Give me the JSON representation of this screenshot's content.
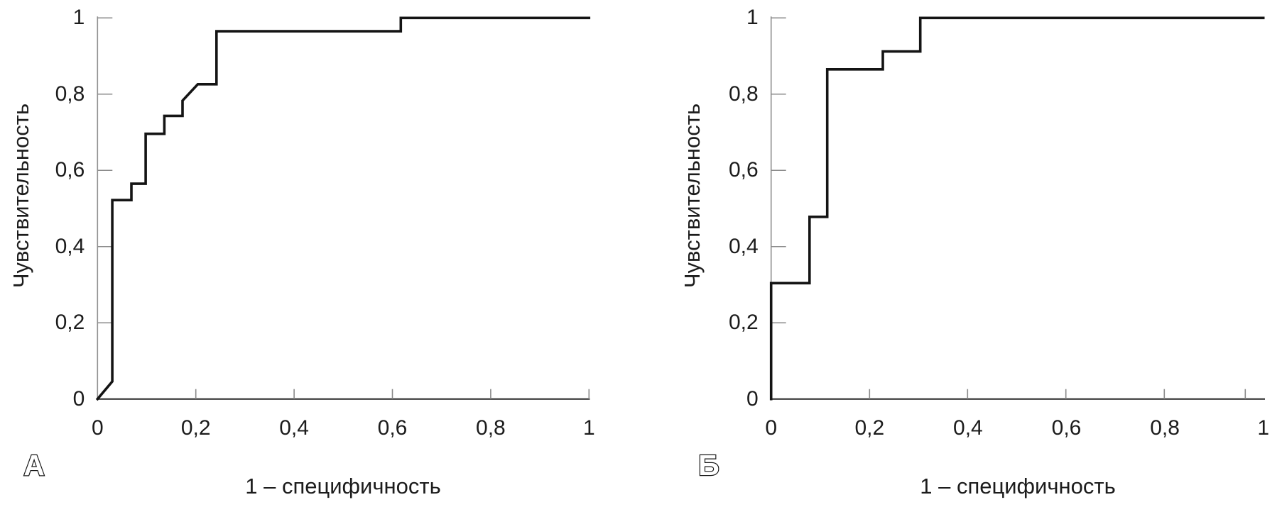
{
  "chart_data": [
    {
      "type": "line",
      "subtype": "roc-step-curve",
      "panel_label": "А",
      "xlabel": "1 – специфичность",
      "ylabel": "Чувствительность",
      "xlim": [
        0,
        1
      ],
      "ylim": [
        0,
        1
      ],
      "grid": false,
      "legend": "none",
      "line_color": "#141414",
      "x_tick_values": [
        0,
        0.2,
        0.4,
        0.6,
        0.8,
        1
      ],
      "x_tick_labels": [
        "0",
        "0,2",
        "0,4",
        "0,6",
        "0,8",
        "1"
      ],
      "y_tick_values": [
        1,
        0.8,
        0.6,
        0.4,
        0.2,
        0
      ],
      "y_tick_labels": [
        "1",
        "0,8",
        "0,6",
        "0,4",
        "0,2",
        "0"
      ],
      "points": [
        [
          0,
          0
        ],
        [
          0.03,
          0.046
        ],
        [
          0.03,
          0.522
        ],
        [
          0.069,
          0.522
        ],
        [
          0.069,
          0.565
        ],
        [
          0.098,
          0.565
        ],
        [
          0.098,
          0.696
        ],
        [
          0.136,
          0.696
        ],
        [
          0.136,
          0.743
        ],
        [
          0.173,
          0.743
        ],
        [
          0.173,
          0.783
        ],
        [
          0.204,
          0.826
        ],
        [
          0.242,
          0.826
        ],
        [
          0.242,
          0.965
        ],
        [
          0.617,
          0.965
        ],
        [
          0.617,
          1.0
        ],
        [
          1.0,
          1.0
        ]
      ]
    },
    {
      "type": "line",
      "subtype": "roc-step-curve",
      "panel_label": "Б",
      "xlabel": "1 – специфичность",
      "ylabel": "Чувствительность",
      "xlim": [
        0,
        1
      ],
      "ylim": [
        0,
        1
      ],
      "grid": false,
      "legend": "none",
      "line_color": "#141414",
      "x_tick_values": [
        0,
        0.2,
        0.4,
        0.6,
        0.8,
        1
      ],
      "x_tick_labels": [
        "0",
        "0,2",
        "0,4",
        "0,6",
        "0,8",
        "1"
      ],
      "y_tick_values": [
        1,
        0.8,
        0.6,
        0.4,
        0.2,
        0
      ],
      "y_tick_labels": [
        "1",
        "0,8",
        "0,6",
        "0,4",
        "0,2",
        "0"
      ],
      "points": [
        [
          0,
          0
        ],
        [
          0,
          0.304
        ],
        [
          0.078,
          0.304
        ],
        [
          0.078,
          0.478
        ],
        [
          0.114,
          0.478
        ],
        [
          0.114,
          0.865
        ],
        [
          0.227,
          0.865
        ],
        [
          0.227,
          0.912
        ],
        [
          0.303,
          0.912
        ],
        [
          0.303,
          1.0
        ],
        [
          1.0,
          1.0
        ]
      ]
    }
  ]
}
